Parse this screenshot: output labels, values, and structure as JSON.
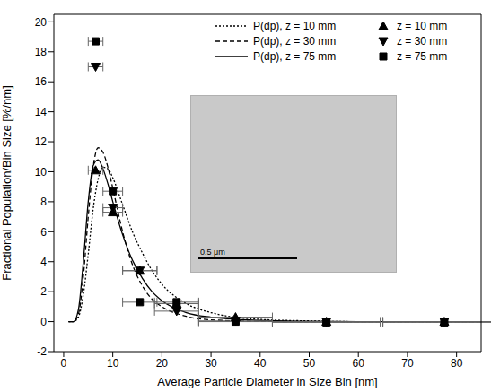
{
  "chart_data": {
    "type": "scatter",
    "xlabel": "Average Particle Diameter in Size Bin [nm]",
    "ylabel": "Fractional Population/Bin Size [%/nm]",
    "xlim": [
      -2,
      85
    ],
    "xticks": [
      0,
      10,
      20,
      30,
      40,
      50,
      60,
      70,
      80
    ],
    "ylim": [
      -2,
      20.5
    ],
    "yticks": [
      -2,
      0,
      2,
      4,
      6,
      8,
      10,
      12,
      14,
      16,
      18,
      20
    ],
    "grid": false,
    "legend": "top",
    "annotations": [
      {
        "text": "0.5 μm"
      }
    ],
    "series": [
      {
        "name": "P(dp), z = 10 mm",
        "type": "line",
        "line_style": "dotted",
        "color": "#000000",
        "x": [
          1,
          2,
          3,
          4,
          5,
          6,
          7,
          8,
          9,
          10,
          12,
          14,
          16,
          18,
          20,
          25,
          30,
          40,
          50,
          60,
          70,
          80,
          85
        ],
        "values": [
          0,
          0,
          0.3,
          1.8,
          4.5,
          7.5,
          9.5,
          10.3,
          10.2,
          9.6,
          7.8,
          6.0,
          4.6,
          3.4,
          2.5,
          1.2,
          0.6,
          0.15,
          0.05,
          0,
          0,
          0,
          0
        ]
      },
      {
        "name": "P(dp), z = 30 mm",
        "type": "line",
        "line_style": "dashed",
        "color": "#000000",
        "x": [
          1,
          2,
          3,
          4,
          5,
          6,
          7,
          8,
          9,
          10,
          12,
          14,
          16,
          18,
          20,
          25,
          30,
          40,
          50,
          60,
          70,
          80,
          85
        ],
        "values": [
          0,
          0,
          0.5,
          3.0,
          7.0,
          10.3,
          11.6,
          11.3,
          10.3,
          8.9,
          6.0,
          3.8,
          2.4,
          1.5,
          1.0,
          0.35,
          0.12,
          0.02,
          0,
          0,
          0,
          0,
          0
        ]
      },
      {
        "name": "P(dp), z = 75 mm",
        "type": "line",
        "line_style": "solid",
        "color": "#000000",
        "x": [
          1,
          2,
          3,
          4,
          5,
          6,
          7,
          8,
          9,
          10,
          12,
          14,
          16,
          18,
          20,
          25,
          30,
          40,
          50,
          60,
          70,
          80,
          85
        ],
        "values": [
          0,
          0,
          0.8,
          4.0,
          8.0,
          10.4,
          10.8,
          10.2,
          9.2,
          8.0,
          5.8,
          4.1,
          2.9,
          2.0,
          1.4,
          0.6,
          0.3,
          0.08,
          0.02,
          0,
          0,
          0,
          0
        ]
      },
      {
        "name": "z = 10 mm",
        "type": "scatter",
        "marker": "triangle-up",
        "color": "#000000",
        "x": [
          6.5,
          10,
          15.5,
          23,
          35,
          53.5,
          77.5
        ],
        "values": [
          10.1,
          7.3,
          3.4,
          1.2,
          0.3,
          0,
          0
        ],
        "x_error": [
          1.5,
          2,
          3.5,
          4.5,
          7.5,
          11,
          12.5
        ]
      },
      {
        "name": "z = 30 mm",
        "type": "scatter",
        "marker": "triangle-down",
        "color": "#000000",
        "x": [
          6.5,
          10,
          15.5,
          23,
          35,
          53.5,
          77.5
        ],
        "values": [
          17,
          7.6,
          3.4,
          0.7,
          0.05,
          0,
          0
        ],
        "x_error": [
          1.5,
          2,
          3.5,
          4.5,
          7.5,
          11,
          12.5
        ]
      },
      {
        "name": "z = 75 mm",
        "type": "scatter",
        "marker": "square",
        "color": "#000000",
        "x": [
          6.5,
          10,
          15.5,
          23,
          35,
          53.5,
          77.5
        ],
        "values": [
          18.7,
          8.7,
          1.3,
          1.3,
          0,
          -0.05,
          -0.05
        ],
        "x_error": [
          1.5,
          2,
          3.5,
          4.5,
          7.5,
          11,
          12.5
        ]
      }
    ]
  }
}
